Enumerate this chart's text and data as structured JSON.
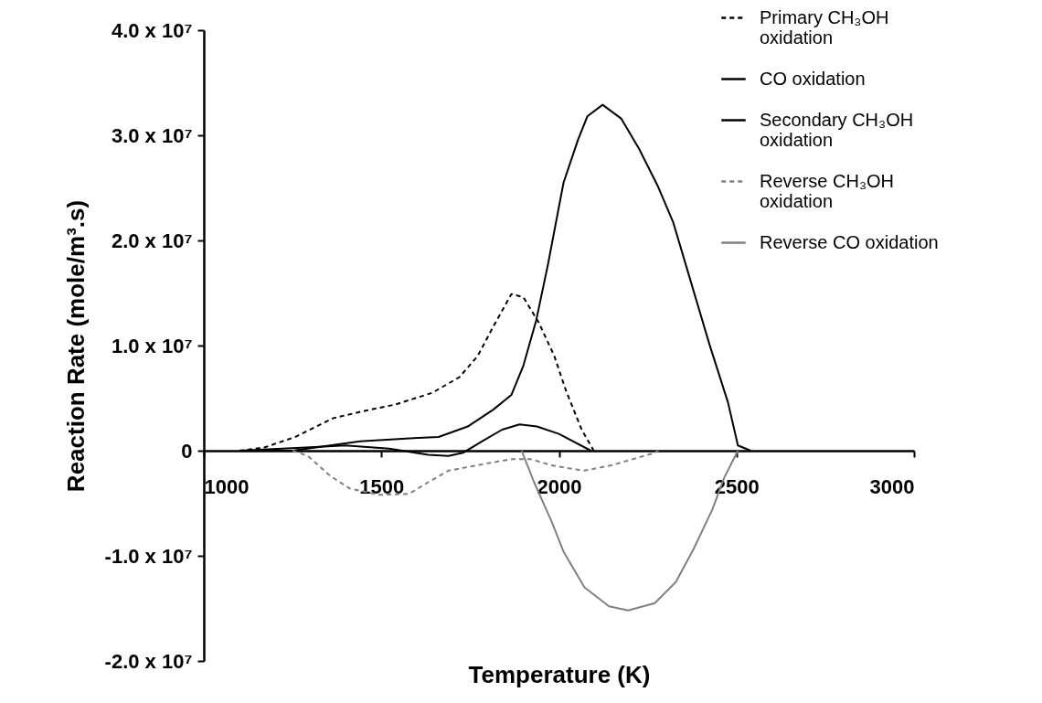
{
  "chart_data": {
    "type": "line",
    "xlabel": "Temperature (K)",
    "ylabel": "Reaction Rate (mole/m³.s)",
    "xlim": [
      1000,
      3000
    ],
    "xticks": [
      1000,
      1500,
      2000,
      2500,
      3000
    ],
    "ylim": [
      -20000000,
      40000000
    ],
    "yticks": [
      {
        "value": -20000000,
        "label": "-2.0 x 10⁷"
      },
      {
        "value": -10000000,
        "label": "-1.0 x 10⁷"
      },
      {
        "value": 0,
        "label": "0"
      },
      {
        "value": 10000000,
        "label": "1.0 x 10⁷"
      },
      {
        "value": 20000000,
        "label": "2.0 x 10⁷"
      },
      {
        "value": 30000000,
        "label": "3.0 x 10⁷"
      },
      {
        "value": 40000000,
        "label": "4.0 x 10⁷"
      }
    ],
    "grid": false,
    "legend": "top right",
    "series": [
      {
        "name": "Primary CH₃OH oxidation",
        "color": "#000000",
        "line_style": "dashed",
        "x": [
          1100,
          1170,
          1257,
          1365,
          1455,
          1540,
          1643,
          1720,
          1771,
          1815,
          1866,
          1900,
          1943,
          1987,
          2020,
          2064,
          2098
        ],
        "values": [
          0,
          300000,
          1300000,
          3100000,
          3800000,
          4400000,
          5500000,
          7000000,
          9000000,
          11800000,
          14900000,
          14600000,
          12200000,
          9000000,
          5700000,
          2000000,
          0
        ]
      },
      {
        "name": "CO oxidation",
        "color": "#000000",
        "line_style": "solid",
        "x": [
          1100,
          1250,
          1356,
          1440,
          1591,
          1661,
          1743,
          1815,
          1866,
          1900,
          1936,
          1969,
          2013,
          2054,
          2080,
          2123,
          2175,
          2226,
          2278,
          2322,
          2373,
          2424,
          2476,
          2504,
          2540
        ],
        "values": [
          0,
          0,
          500000,
          900000,
          1200000,
          1300000,
          2300000,
          3900000,
          5300000,
          8100000,
          12400000,
          17700000,
          25500000,
          29600000,
          31800000,
          32900000,
          31600000,
          28700000,
          25200000,
          21700000,
          15900000,
          10100000,
          4600000,
          500000,
          0
        ]
      },
      {
        "name": "Secondary CH₃OH oxidation",
        "color": "#000000",
        "line_style": "solid",
        "x": [
          1100,
          1288,
          1398,
          1522,
          1632,
          1689,
          1730,
          1784,
          1840,
          1889,
          1938,
          2000,
          2090
        ],
        "values": [
          0,
          300000,
          500000,
          200000,
          -400000,
          -500000,
          -200000,
          900000,
          2000000,
          2500000,
          2300000,
          1600000,
          0
        ]
      },
      {
        "name": "Reverse CH₃OH oxidation",
        "color": "#808080",
        "line_style": "dashed",
        "x": [
          1250,
          1293,
          1356,
          1411,
          1494,
          1578,
          1632,
          1689,
          1799,
          1868,
          1920,
          1980,
          2070,
          2147,
          2270,
          2280
        ],
        "values": [
          0,
          -500000,
          -2400000,
          -3600000,
          -4200000,
          -4100000,
          -3000000,
          -1900000,
          -1200000,
          -800000,
          -800000,
          -1400000,
          -1900000,
          -1400000,
          -200000,
          0
        ]
      },
      {
        "name": "Reverse CO oxidation",
        "color": "#808080",
        "line_style": "solid",
        "x": [
          1895,
          1930,
          1979,
          2013,
          2072,
          2141,
          2195,
          2270,
          2329,
          2380,
          2432,
          2465,
          2504
        ],
        "values": [
          0,
          -3000000,
          -6700000,
          -9600000,
          -13000000,
          -14800000,
          -15200000,
          -14500000,
          -12500000,
          -9300000,
          -5600000,
          -2600000,
          0
        ]
      }
    ]
  }
}
